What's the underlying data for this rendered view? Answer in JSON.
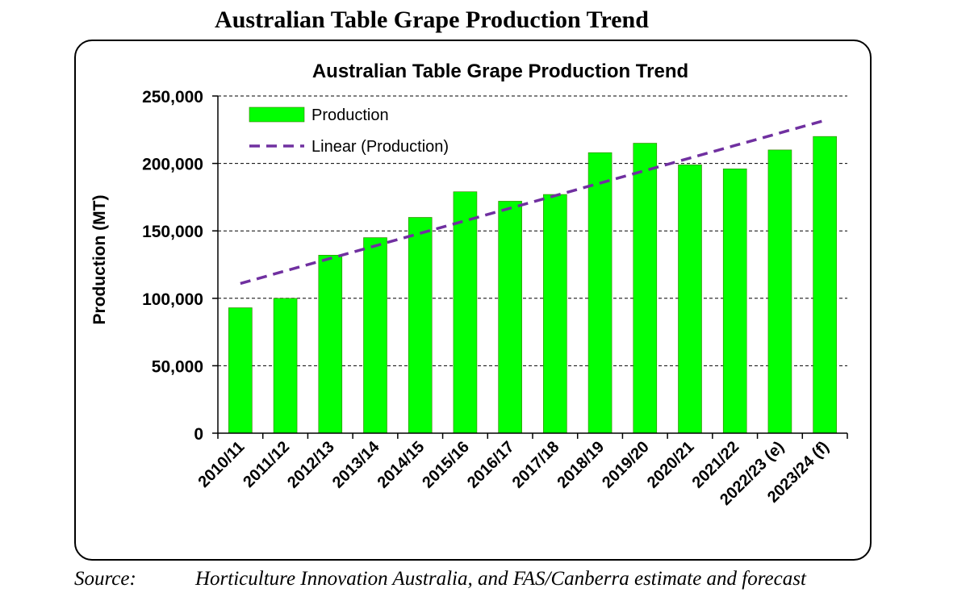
{
  "page_title": "Australian Table Grape Production Trend",
  "source": {
    "label": "Source:",
    "text": "Horticulture Innovation Australia, and FAS/Canberra estimate and forecast"
  },
  "colors": {
    "bar": "#00ff00",
    "bar_edge": "#3a7a00",
    "trend": "#7030a0"
  },
  "chart_data": {
    "type": "bar",
    "title": "Australian Table Grape Production Trend",
    "xlabel": "",
    "ylabel": "Production (MT)",
    "ylim": [
      0,
      250000
    ],
    "yticks": [
      0,
      50000,
      100000,
      150000,
      200000,
      250000
    ],
    "ytick_labels": [
      "0",
      "50,000",
      "100,000",
      "150,000",
      "200,000",
      "250,000"
    ],
    "grid": "horizontal dashed",
    "legend_position": "top-left",
    "categories": [
      "2010/11",
      "2011/12",
      "2012/13",
      "2013/14",
      "2014/15",
      "2015/16",
      "2016/17",
      "2017/18",
      "2018/19",
      "2019/20",
      "2020/21",
      "2021/22",
      "2022/23 (e)",
      "2023/24 (f)"
    ],
    "series": [
      {
        "name": "Production",
        "kind": "bar",
        "values": [
          93000,
          100000,
          132000,
          145000,
          160000,
          179000,
          172000,
          177000,
          208000,
          215000,
          199000,
          196000,
          210000,
          220000
        ]
      },
      {
        "name": "Linear (Production)",
        "kind": "trendline",
        "values": [
          111000,
          120300,
          129600,
          138900,
          148200,
          157500,
          166800,
          176100,
          185400,
          194700,
          204000,
          213300,
          222600,
          231900
        ]
      }
    ]
  }
}
